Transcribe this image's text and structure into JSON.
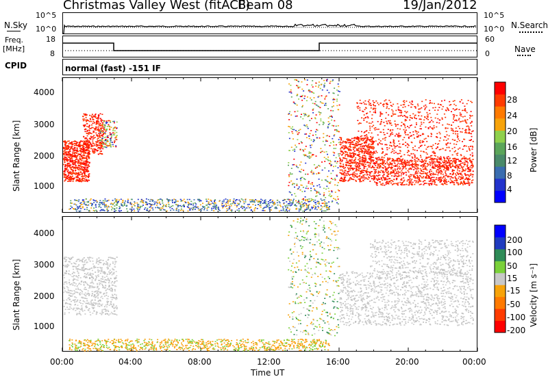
{
  "header": {
    "title": "Christmas Valley West (fitACF)",
    "beam": "Beam 08",
    "date": "19/Jan/2012"
  },
  "aux": {
    "nsky_label": "N.Sky",
    "nsky_ticks": [
      "10^5",
      "10^0"
    ],
    "nsearch_label": "N.Search",
    "nsearch_ticks": [
      "10^5",
      "10^0"
    ],
    "freq_label": "Freq.",
    "freq_unit": "[MHz]",
    "freq_ticks": [
      "18",
      "8"
    ],
    "nave_label": "Nave",
    "nave_ticks": [
      "60",
      "0"
    ],
    "cpid_label": "CPID",
    "cpid_text": "normal (fast) -151 IF"
  },
  "colors": {
    "power_scale": [
      "#0000ff",
      "#2233cc",
      "#3a6db0",
      "#4a8a6a",
      "#5ba55a",
      "#8fd04c",
      "#f7a30a",
      "#ff7a00",
      "#ff3b00",
      "#ff0000"
    ],
    "velocity_scale": [
      "#0000ff",
      "#1f3bbf",
      "#2e8b57",
      "#7ad13a",
      "#c8c8c8",
      "#f7a30a",
      "#ff7a00",
      "#ff3b00",
      "#ff0000"
    ]
  },
  "chart_data": [
    {
      "type": "heatmap",
      "panel": "power",
      "ylabel": "Slant Range [km]",
      "yticks": [
        "4000",
        "3000",
        "2000",
        "1000"
      ],
      "ylim": [
        180,
        4500
      ],
      "xlim": [
        0,
        24
      ],
      "colorbar_label": "Power [dB]",
      "colorbar_ticks": [
        "28",
        "24",
        "20",
        "16",
        "12",
        "8",
        "4"
      ],
      "colorbar_range": [
        0,
        30
      ]
    },
    {
      "type": "heatmap",
      "panel": "velocity",
      "ylabel": "Slant Range [km]",
      "yticks": [
        "4000",
        "3000",
        "2000",
        "1000"
      ],
      "ylim": [
        180,
        4500
      ],
      "xlim": [
        0,
        24
      ],
      "xlabel": "Time UT",
      "xticks": [
        "00:00",
        "04:00",
        "08:00",
        "12:00",
        "16:00",
        "20:00",
        "00:00"
      ],
      "colorbar_label": "Velocity [m s⁻¹]",
      "colorbar_ticks": [
        "200",
        "100",
        "50",
        "15",
        "-15",
        "-50",
        "-100",
        "-200"
      ]
    }
  ]
}
